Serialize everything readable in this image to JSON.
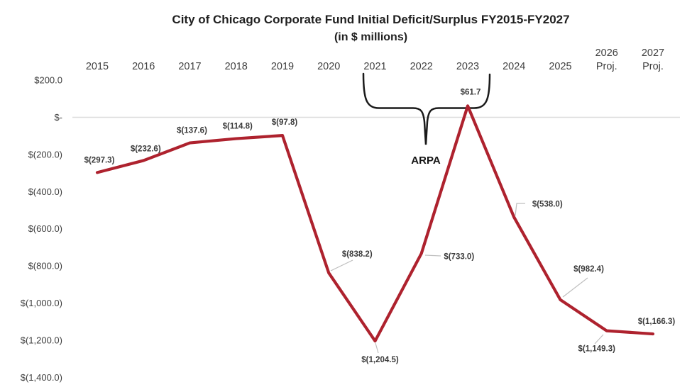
{
  "title": {
    "line1": "City of Chicago Corporate Fund Initial Deficit/Surplus FY2015-FY2027",
    "line2": "(in $ millions)"
  },
  "chart_data": {
    "type": "line",
    "title": "City of Chicago Corporate Fund Initial Deficit/Surplus FY2015-FY2027 (in $ millions)",
    "x": [
      "2015",
      "2016",
      "2017",
      "2018",
      "2019",
      "2020",
      "2021",
      "2022",
      "2023",
      "2024",
      "2025",
      "2026 Proj.",
      "2027 Proj."
    ],
    "series": [
      {
        "name": "Corporate Fund Initial Deficit/Surplus ($ millions)",
        "values": [
          -297.3,
          -232.6,
          -137.6,
          -114.8,
          -97.8,
          -838.2,
          -1204.5,
          -733.0,
          61.7,
          -538.0,
          -982.4,
          -1149.3,
          -1166.3
        ]
      }
    ],
    "data_labels": [
      "$(297.3)",
      "$(232.6)",
      "$(137.6)",
      "$(114.8)",
      "$(97.8)",
      "$(838.2)",
      "$(1,204.5)",
      "$(733.0)",
      "$61.7",
      "$(538.0)",
      "$(982.4)",
      "$(1,149.3)",
      "$(1,166.3)"
    ],
    "y_tick_labels": [
      "$200.0",
      "$-",
      "$(200.0)",
      "$(400.0)",
      "$(600.0)",
      "$(800.0)",
      "$(1,000.0)",
      "$(1,200.0)",
      "$(1,400.0)"
    ],
    "y_tick_values": [
      200,
      0,
      -200,
      -400,
      -600,
      -800,
      -1000,
      -1200,
      -1400
    ],
    "ylim": [
      -1400,
      200
    ],
    "x_axis_position": "top",
    "grid": "zero-line-only",
    "legend": "none",
    "line_color": "#ae222e",
    "zero_line_color": "#dcdcdc",
    "leader_line_color": "#bfbfbf",
    "annotation": {
      "text": "ARPA",
      "span_years": [
        "2021",
        "2023"
      ],
      "style": "curly-brace-above"
    }
  }
}
